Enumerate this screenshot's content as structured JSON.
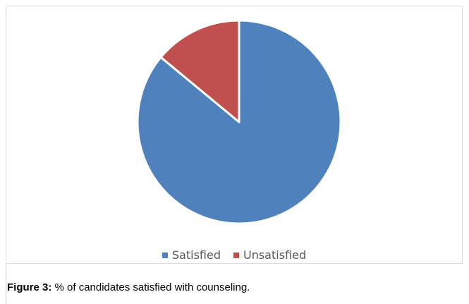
{
  "chart_data": {
    "type": "pie",
    "categories": [
      "Satisfied",
      "Unsatisfied"
    ],
    "values": [
      86,
      14
    ],
    "colors": [
      "#4f81bd",
      "#c0504d"
    ],
    "start_angle_deg": 0,
    "direction": "clockwise",
    "legend_position": "bottom",
    "title": ""
  },
  "caption": {
    "label": "Figure 3:",
    "text": "% of candidates satisfied with counseling."
  }
}
